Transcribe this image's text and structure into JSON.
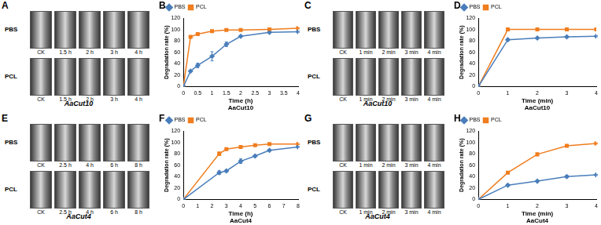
{
  "chart_data": [
    {
      "type": "line",
      "panel_label": "B",
      "x_label": "Time (h)",
      "y_label": "Degradation rate (%)",
      "caption": "AaCut10",
      "xlim": [
        0,
        4
      ],
      "xticks": [
        0,
        0.5,
        1,
        1.5,
        2,
        2.5,
        3,
        3.5,
        4
      ],
      "ylim": [
        0,
        120
      ],
      "yticks": [
        0,
        20,
        40,
        60,
        80,
        100,
        120
      ],
      "grid": false,
      "legend": "upper left",
      "series": [
        {
          "name": "PBS",
          "color": "#4a7ebb",
          "marker": "diamond",
          "x": [
            0,
            0.25,
            0.5,
            1,
            1.5,
            2,
            3,
            4
          ],
          "values": [
            0,
            27,
            37,
            53,
            74,
            88,
            95,
            96
          ],
          "errors": [
            0,
            1,
            4,
            8,
            4,
            1,
            2,
            1
          ]
        },
        {
          "name": "PCL",
          "color": "#f07d1e",
          "marker": "square",
          "x": [
            0,
            0.25,
            0.5,
            1,
            1.5,
            2,
            3,
            4
          ],
          "values": [
            0,
            87,
            92,
            97,
            99,
            99,
            100,
            102
          ],
          "errors": [
            0,
            1,
            1,
            1,
            1,
            1,
            2,
            1
          ]
        }
      ]
    },
    {
      "type": "line",
      "panel_label": "D",
      "x_label": "Time (min)",
      "y_label": "Degradation rate (%)",
      "caption": "AaCut10",
      "xlim": [
        0,
        4
      ],
      "xticks": [
        0,
        1,
        2,
        3,
        4
      ],
      "ylim": [
        0,
        120
      ],
      "yticks": [
        0,
        20,
        40,
        60,
        80,
        100,
        120
      ],
      "grid": false,
      "legend": "upper left",
      "series": [
        {
          "name": "PBS",
          "color": "#4a7ebb",
          "marker": "diamond",
          "x": [
            0,
            1,
            2,
            3,
            4
          ],
          "values": [
            0,
            82,
            85,
            87,
            88
          ],
          "errors": [
            0,
            1,
            1,
            1,
            1
          ]
        },
        {
          "name": "PCL",
          "color": "#f07d1e",
          "marker": "square",
          "x": [
            0,
            1,
            2,
            3,
            4
          ],
          "values": [
            0,
            100,
            100,
            100,
            100
          ],
          "errors": [
            0,
            0,
            0,
            0,
            0
          ]
        }
      ]
    },
    {
      "type": "line",
      "panel_label": "F",
      "x_label": "Time (h)",
      "y_label": "Degradation rate (%)",
      "caption": "AaCut4",
      "xlim": [
        0,
        8
      ],
      "xticks": [
        0,
        1,
        2,
        3,
        4,
        5,
        6,
        7,
        8
      ],
      "ylim": [
        0,
        120
      ],
      "yticks": [
        0,
        20,
        40,
        60,
        80,
        100,
        120
      ],
      "grid": false,
      "legend": "upper left",
      "series": [
        {
          "name": "PBS",
          "color": "#4a7ebb",
          "marker": "diamond",
          "x": [
            0,
            2.5,
            3,
            4,
            5,
            6,
            8
          ],
          "values": [
            0,
            47,
            50,
            67,
            76,
            86,
            92
          ],
          "errors": [
            0,
            3,
            2,
            4,
            1,
            1,
            1
          ]
        },
        {
          "name": "PCL",
          "color": "#f07d1e",
          "marker": "square",
          "x": [
            0,
            2.5,
            3,
            4,
            5,
            6,
            8
          ],
          "values": [
            0,
            80,
            88,
            92,
            95,
            97,
            97
          ],
          "errors": [
            0,
            3,
            1,
            1,
            1,
            1,
            1
          ]
        }
      ]
    },
    {
      "type": "line",
      "panel_label": "H",
      "x_label": "Time (min)",
      "y_label": "Degradation rate (%)",
      "caption": "AaCut4",
      "xlim": [
        0,
        4
      ],
      "xticks": [
        0,
        1,
        2,
        3,
        4
      ],
      "ylim": [
        0,
        120
      ],
      "yticks": [
        0,
        20,
        40,
        60,
        80,
        100,
        120
      ],
      "grid": false,
      "legend": "upper left",
      "series": [
        {
          "name": "PBS",
          "color": "#4a7ebb",
          "marker": "diamond",
          "x": [
            0,
            1,
            2,
            3,
            4
          ],
          "values": [
            0,
            25,
            32,
            40,
            43
          ],
          "errors": [
            0,
            2,
            1,
            2,
            1
          ]
        },
        {
          "name": "PCL",
          "color": "#f07d1e",
          "marker": "square",
          "x": [
            0,
            1,
            2,
            3,
            4
          ],
          "values": [
            0,
            47,
            79,
            94,
            98
          ],
          "errors": [
            0,
            1,
            2,
            1,
            1
          ]
        }
      ]
    }
  ],
  "image_panels": [
    {
      "panel_label": "A",
      "rows": [
        "PBS",
        "PCL"
      ],
      "columns": [
        "CK",
        "1.5 h",
        "2 h",
        "3 h",
        "4 h"
      ],
      "caption": "AaCut10"
    },
    {
      "panel_label": "C",
      "rows": [
        "PBS",
        "PCL"
      ],
      "columns": [
        "CK",
        "1 min",
        "2 min",
        "3 min",
        "4 min"
      ],
      "caption": "AaCut10"
    },
    {
      "panel_label": "E",
      "rows": [
        "PBS",
        "PCL"
      ],
      "columns": [
        "CK",
        "2.5 h",
        "4 h",
        "6 h",
        "8 h"
      ],
      "caption": "AaCut4"
    },
    {
      "panel_label": "G",
      "rows": [
        "PBS",
        "PCL"
      ],
      "columns": [
        "CK",
        "1 min",
        "2 min",
        "3 min",
        "4 min"
      ],
      "caption": "AaCut4"
    }
  ]
}
